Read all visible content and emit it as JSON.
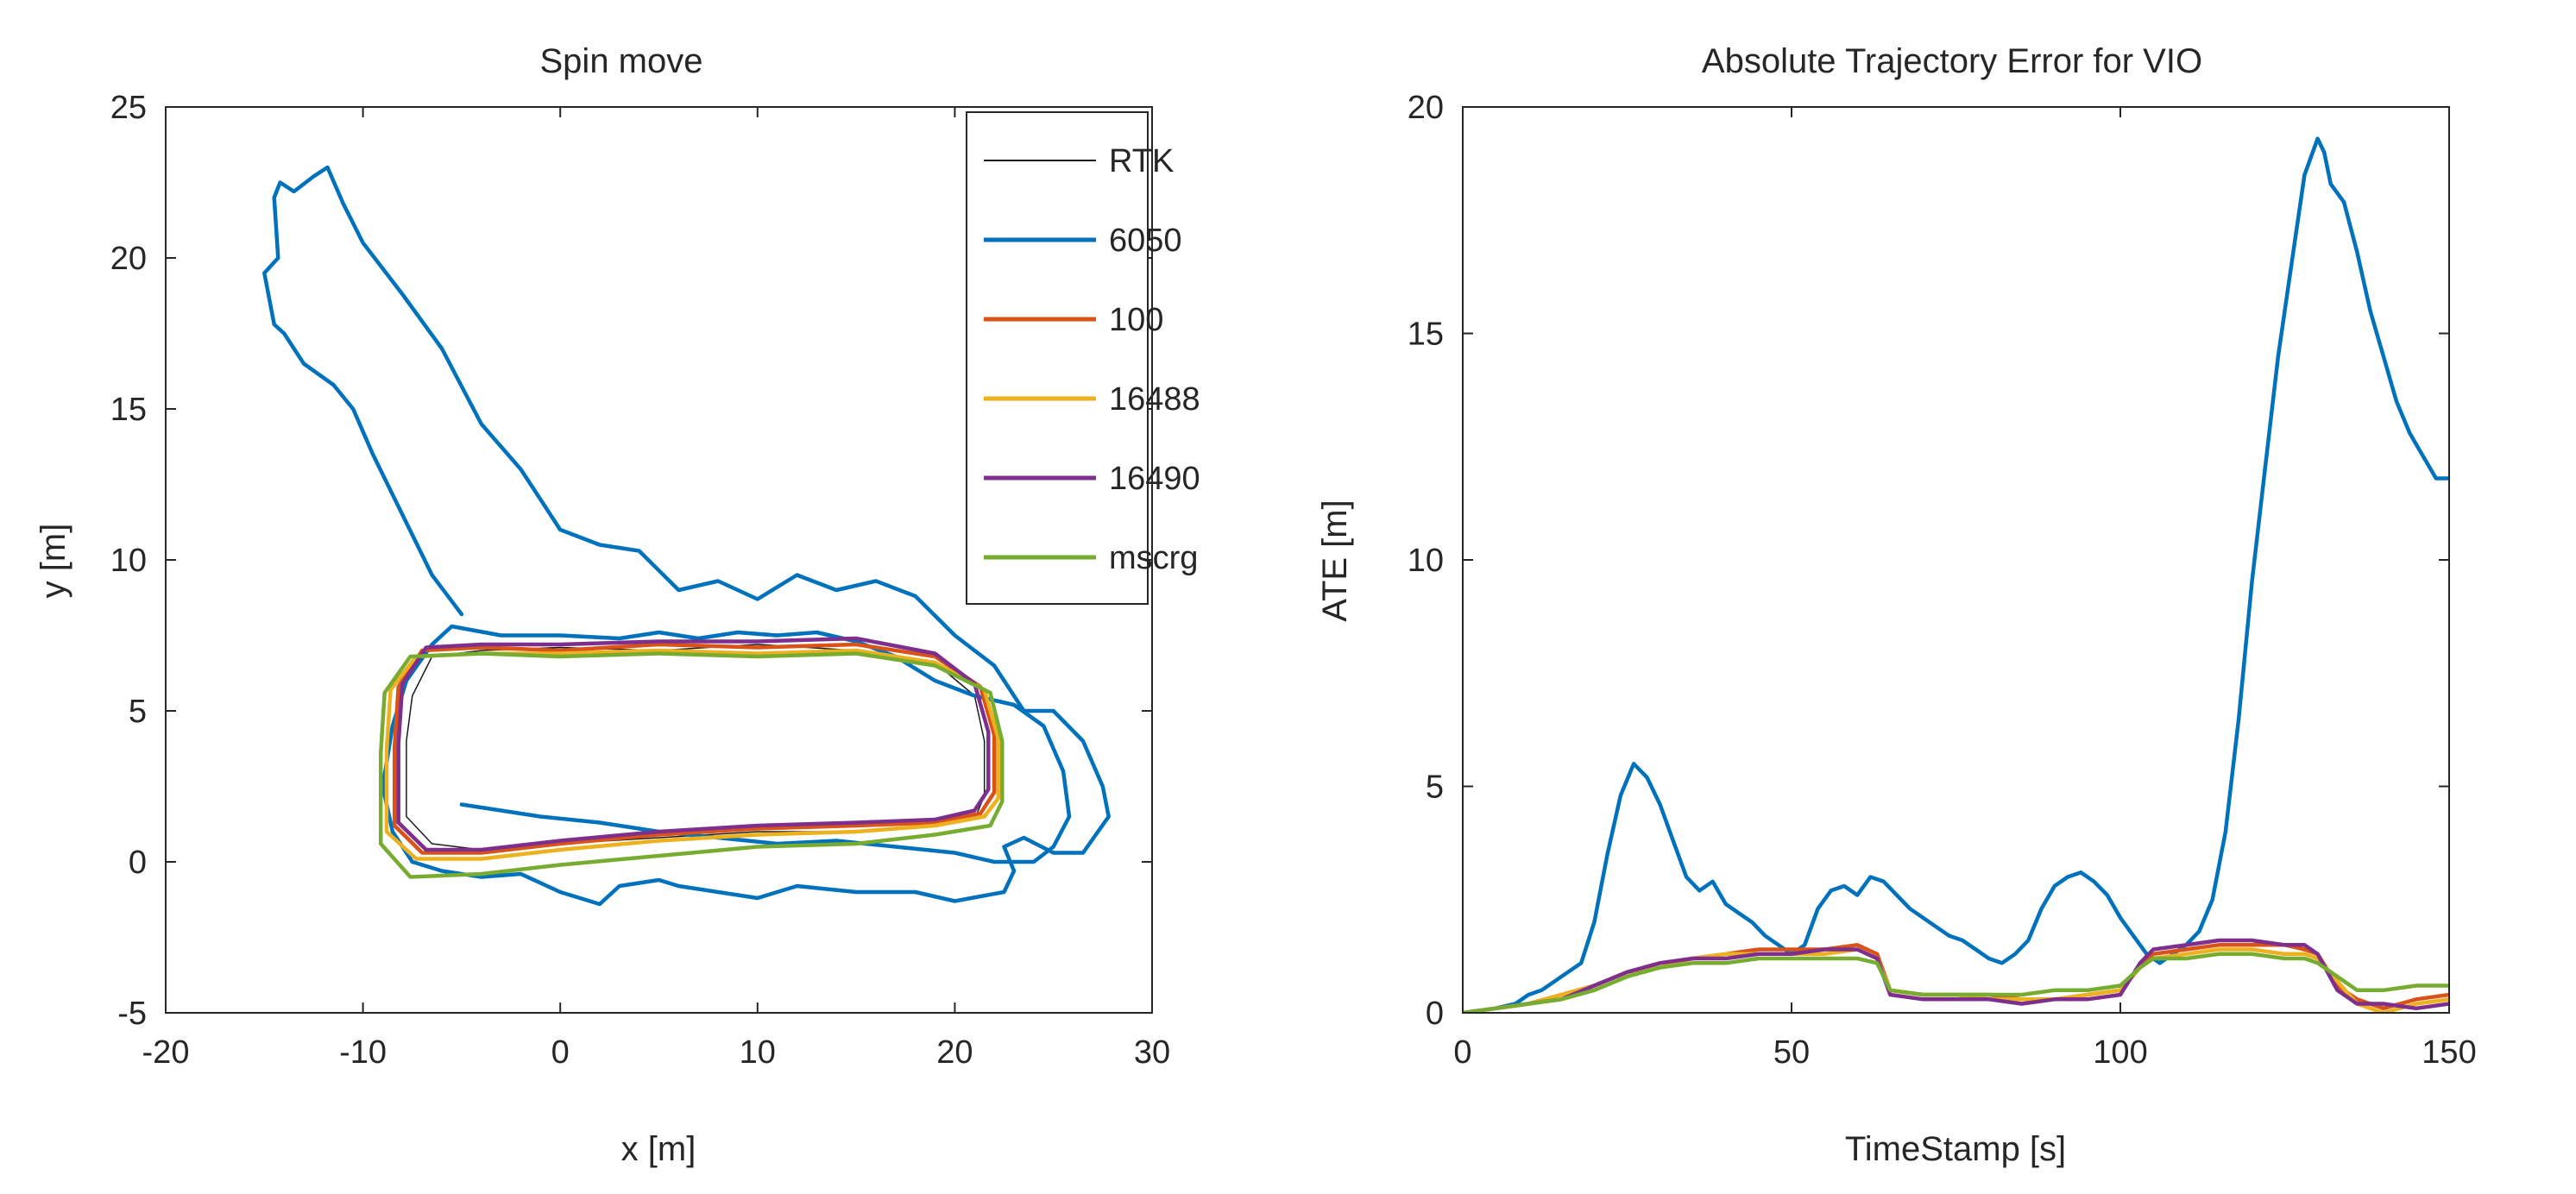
{
  "chart_data": [
    {
      "type": "line",
      "title": "Spin move",
      "xlabel": "x [m]",
      "ylabel": "y [m]",
      "xlim": [
        -20,
        30
      ],
      "ylim": [
        -5,
        25
      ],
      "xticks": [
        -20,
        -10,
        0,
        10,
        20,
        30
      ],
      "yticks": [
        -5,
        0,
        5,
        10,
        15,
        20,
        25
      ],
      "grid": false,
      "legend": {
        "position": "top-right",
        "entries": [
          {
            "label": "RTK",
            "color": "#1a1a1a"
          },
          {
            "label": "6050",
            "color": "#0072BD"
          },
          {
            "label": "100",
            "color": "#D95319"
          },
          {
            "label": "16488",
            "color": "#EDB120"
          },
          {
            "label": "16490",
            "color": "#7E2F8E"
          },
          {
            "label": "mscrg",
            "color": "#77AC30"
          }
        ]
      },
      "series": [
        {
          "name": "RTK",
          "color": "#1a1a1a",
          "width": 1.5,
          "x": [
            -7.5,
            -6.5,
            -4,
            0,
            5,
            10,
            15,
            19,
            21,
            21.5,
            21.5,
            21,
            19,
            15,
            10,
            5,
            0,
            -4,
            -6.5,
            -7.8,
            -7.8,
            -7.5
          ],
          "y": [
            5.5,
            6.8,
            7.0,
            7.1,
            7.0,
            7.2,
            7.0,
            6.6,
            5.5,
            4.0,
            2.2,
            1.4,
            1.2,
            1.0,
            1.0,
            0.8,
            0.6,
            0.4,
            0.6,
            1.5,
            4.0,
            5.5
          ]
        },
        {
          "name": "6050",
          "color": "#0072BD",
          "width": 4.5,
          "x": [
            -5,
            -6.5,
            -8,
            -9.5,
            -10.5,
            -11.5,
            -13,
            -14,
            -14.5,
            -15,
            -14.3,
            -14.5,
            -14.2,
            -13.5,
            -12.5,
            -11.8,
            -11,
            -10,
            -8,
            -6,
            -4,
            -2,
            0,
            2,
            4,
            6,
            8,
            10,
            12,
            14,
            16,
            18,
            20,
            22,
            23.5,
            25,
            26.5,
            27.5,
            27.8,
            26.5,
            25,
            23.5,
            22.5,
            23,
            22.5,
            20,
            18,
            15,
            12,
            10,
            8,
            6,
            5,
            3,
            2,
            0,
            -2,
            -4,
            -6,
            -7.5,
            -8.5,
            -9,
            -8.5,
            -7.8,
            -6.5,
            -5.5,
            -3,
            0,
            3,
            5,
            7,
            9,
            11,
            13,
            15,
            17,
            19,
            21,
            23,
            24.5,
            25.5,
            25.8,
            25,
            24,
            22,
            20,
            17,
            14,
            11,
            8,
            5,
            2,
            -1,
            -4,
            -5
          ],
          "y": [
            8.2,
            9.5,
            11.5,
            13.5,
            15.0,
            15.8,
            16.5,
            17.5,
            17.8,
            19.5,
            20.0,
            22.0,
            22.5,
            22.2,
            22.7,
            23.0,
            21.8,
            20.5,
            18.8,
            17.0,
            14.5,
            13.0,
            11.0,
            10.5,
            10.3,
            9.0,
            9.3,
            8.7,
            9.5,
            9.0,
            9.3,
            8.8,
            7.5,
            6.5,
            5.0,
            5.0,
            4.0,
            2.5,
            1.5,
            0.3,
            0.3,
            0.8,
            0.5,
            -0.3,
            -1.0,
            -1.3,
            -1.0,
            -1.0,
            -0.8,
            -1.2,
            -1.0,
            -0.8,
            -0.6,
            -0.8,
            -1.4,
            -1.0,
            -0.4,
            -0.5,
            -0.3,
            0.0,
            1.0,
            2.5,
            4.5,
            6.0,
            7.2,
            7.8,
            7.5,
            7.5,
            7.4,
            7.6,
            7.4,
            7.6,
            7.5,
            7.6,
            7.3,
            6.8,
            6.0,
            5.5,
            5.2,
            4.5,
            3.0,
            1.5,
            0.5,
            0.0,
            0.0,
            0.3,
            0.5,
            0.7,
            0.6,
            0.8,
            1.0,
            1.3,
            1.5,
            1.8,
            1.9
          ]
        },
        {
          "name": "100",
          "color": "#D95319",
          "width": 4.5,
          "x": [
            -8.2,
            -7.0,
            -4,
            0,
            5,
            10,
            15,
            19,
            21.3,
            22.0,
            22.0,
            21.3,
            19,
            15,
            10,
            5,
            0,
            -4,
            -7.0,
            -8.4,
            -8.4,
            -8.2
          ],
          "y": [
            5.8,
            7.0,
            7.1,
            7.0,
            7.2,
            7.1,
            7.2,
            6.8,
            5.8,
            4.2,
            2.3,
            1.6,
            1.3,
            1.2,
            1.1,
            0.9,
            0.6,
            0.3,
            0.3,
            1.2,
            3.8,
            5.8
          ]
        },
        {
          "name": "16488",
          "color": "#EDB120",
          "width": 4.5,
          "x": [
            -8.6,
            -7.3,
            -4,
            0,
            5,
            10,
            15,
            19,
            21.5,
            22.2,
            22.2,
            21.5,
            19,
            15,
            10,
            5,
            0,
            -4,
            -7.3,
            -8.8,
            -8.8,
            -8.6
          ],
          "y": [
            5.7,
            6.8,
            6.9,
            6.9,
            7.0,
            6.9,
            7.0,
            6.6,
            5.7,
            4.1,
            2.1,
            1.5,
            1.2,
            1.0,
            0.9,
            0.7,
            0.4,
            0.1,
            0.1,
            1.0,
            3.7,
            5.7
          ]
        },
        {
          "name": "16490",
          "color": "#7E2F8E",
          "width": 4.5,
          "x": [
            -8.0,
            -6.8,
            -4,
            0,
            5,
            10,
            15,
            19,
            21.0,
            21.7,
            21.7,
            21.0,
            19,
            15,
            10,
            5,
            0,
            -4,
            -6.8,
            -8.2,
            -8.2,
            -8.0
          ],
          "y": [
            5.9,
            7.1,
            7.2,
            7.2,
            7.3,
            7.3,
            7.4,
            6.9,
            5.9,
            4.3,
            2.4,
            1.7,
            1.4,
            1.3,
            1.2,
            1.0,
            0.7,
            0.4,
            0.4,
            1.3,
            3.9,
            5.9
          ]
        },
        {
          "name": "mscrg",
          "color": "#77AC30",
          "width": 4.5,
          "x": [
            -8.9,
            -7.6,
            -4,
            0,
            5,
            10,
            15,
            19,
            21.8,
            22.4,
            22.4,
            21.8,
            19,
            15,
            10,
            5,
            0,
            -4,
            -7.6,
            -9.1,
            -9.1,
            -8.9
          ],
          "y": [
            5.6,
            6.8,
            6.9,
            6.8,
            6.9,
            6.8,
            6.9,
            6.5,
            5.6,
            4.0,
            2.0,
            1.2,
            0.9,
            0.6,
            0.5,
            0.2,
            -0.1,
            -0.4,
            -0.5,
            0.6,
            3.6,
            5.6
          ]
        }
      ]
    },
    {
      "type": "line",
      "title": "Absolute Trajectory Error for VIO",
      "xlabel": "TimeStamp [s]",
      "ylabel": "ATE [m]",
      "xlim": [
        0,
        150
      ],
      "ylim": [
        0,
        20
      ],
      "xticks": [
        0,
        50,
        100,
        150
      ],
      "yticks": [
        0,
        5,
        10,
        15,
        20
      ],
      "grid": false,
      "series": [
        {
          "name": "6050",
          "color": "#0072BD",
          "width": 4.5,
          "x": [
            5,
            8,
            10,
            12,
            14,
            16,
            18,
            20,
            22,
            24,
            26,
            28,
            30,
            32,
            34,
            36,
            38,
            40,
            42,
            44,
            46,
            48,
            50,
            52,
            54,
            56,
            58,
            60,
            62,
            64,
            66,
            68,
            70,
            72,
            74,
            76,
            78,
            80,
            82,
            84,
            86,
            88,
            90,
            92,
            94,
            96,
            98,
            100,
            102,
            104,
            106,
            108,
            110,
            112,
            114,
            116,
            118,
            120,
            122,
            124,
            126,
            128,
            130,
            131,
            132,
            134,
            136,
            138,
            140,
            142,
            144,
            146,
            148,
            150
          ],
          "y": [
            0.1,
            0.2,
            0.4,
            0.5,
            0.7,
            0.9,
            1.1,
            2.0,
            3.5,
            4.8,
            5.5,
            5.2,
            4.6,
            3.8,
            3.0,
            2.7,
            2.9,
            2.4,
            2.2,
            2.0,
            1.7,
            1.5,
            1.3,
            1.5,
            2.3,
            2.7,
            2.8,
            2.6,
            3.0,
            2.9,
            2.6,
            2.3,
            2.1,
            1.9,
            1.7,
            1.6,
            1.4,
            1.2,
            1.1,
            1.3,
            1.6,
            2.3,
            2.8,
            3.0,
            3.1,
            2.9,
            2.6,
            2.1,
            1.7,
            1.3,
            1.1,
            1.3,
            1.5,
            1.8,
            2.5,
            4.0,
            6.5,
            9.5,
            12.0,
            14.5,
            16.5,
            18.5,
            19.3,
            19.0,
            18.3,
            17.9,
            16.8,
            15.5,
            14.5,
            13.5,
            12.8,
            12.3,
            11.8,
            11.8
          ]
        },
        {
          "name": "100",
          "color": "#D95319",
          "width": 4.5,
          "x": [
            0,
            5,
            10,
            15,
            20,
            25,
            30,
            35,
            40,
            45,
            50,
            55,
            60,
            63,
            65,
            70,
            75,
            80,
            85,
            90,
            95,
            100,
            103,
            105,
            110,
            115,
            120,
            125,
            128,
            130,
            133,
            136,
            140,
            145,
            150
          ],
          "y": [
            0,
            0.1,
            0.2,
            0.4,
            0.6,
            0.9,
            1.1,
            1.2,
            1.3,
            1.4,
            1.4,
            1.4,
            1.5,
            1.3,
            0.5,
            0.4,
            0.4,
            0.4,
            0.3,
            0.3,
            0.4,
            0.5,
            1.0,
            1.3,
            1.4,
            1.5,
            1.5,
            1.5,
            1.4,
            1.3,
            0.6,
            0.3,
            0.1,
            0.3,
            0.4
          ]
        },
        {
          "name": "16488",
          "color": "#EDB120",
          "width": 4.5,
          "x": [
            0,
            5,
            10,
            15,
            20,
            25,
            30,
            35,
            40,
            45,
            50,
            55,
            60,
            63,
            65,
            70,
            75,
            80,
            85,
            90,
            95,
            100,
            103,
            105,
            110,
            115,
            120,
            125,
            128,
            130,
            133,
            136,
            140,
            145,
            150
          ],
          "y": [
            0,
            0.1,
            0.2,
            0.4,
            0.6,
            0.9,
            1.0,
            1.2,
            1.3,
            1.3,
            1.3,
            1.3,
            1.4,
            1.2,
            0.5,
            0.4,
            0.4,
            0.3,
            0.3,
            0.3,
            0.4,
            0.5,
            1.0,
            1.2,
            1.3,
            1.4,
            1.4,
            1.3,
            1.3,
            1.2,
            0.7,
            0.2,
            0.0,
            0.2,
            0.3
          ]
        },
        {
          "name": "16490",
          "color": "#7E2F8E",
          "width": 4.5,
          "x": [
            0,
            5,
            10,
            15,
            20,
            25,
            30,
            35,
            40,
            45,
            50,
            55,
            60,
            63,
            65,
            70,
            75,
            80,
            85,
            90,
            95,
            100,
            103,
            105,
            110,
            115,
            120,
            125,
            128,
            130,
            133,
            136,
            140,
            145,
            150
          ],
          "y": [
            0,
            0.1,
            0.2,
            0.3,
            0.6,
            0.9,
            1.1,
            1.2,
            1.2,
            1.3,
            1.3,
            1.4,
            1.4,
            1.2,
            0.4,
            0.3,
            0.3,
            0.3,
            0.2,
            0.3,
            0.3,
            0.4,
            1.1,
            1.4,
            1.5,
            1.6,
            1.6,
            1.5,
            1.5,
            1.3,
            0.5,
            0.2,
            0.2,
            0.1,
            0.2
          ]
        },
        {
          "name": "mscrg",
          "color": "#77AC30",
          "width": 4.5,
          "x": [
            0,
            5,
            10,
            15,
            20,
            25,
            30,
            35,
            40,
            45,
            50,
            55,
            60,
            63,
            65,
            70,
            75,
            80,
            85,
            90,
            95,
            100,
            103,
            105,
            110,
            115,
            120,
            125,
            128,
            130,
            133,
            136,
            140,
            145,
            150
          ],
          "y": [
            0,
            0.1,
            0.2,
            0.3,
            0.5,
            0.8,
            1.0,
            1.1,
            1.1,
            1.2,
            1.2,
            1.2,
            1.2,
            1.1,
            0.5,
            0.4,
            0.4,
            0.4,
            0.4,
            0.5,
            0.5,
            0.6,
            1.0,
            1.2,
            1.2,
            1.3,
            1.3,
            1.2,
            1.2,
            1.1,
            0.8,
            0.5,
            0.5,
            0.6,
            0.6
          ]
        }
      ]
    }
  ]
}
